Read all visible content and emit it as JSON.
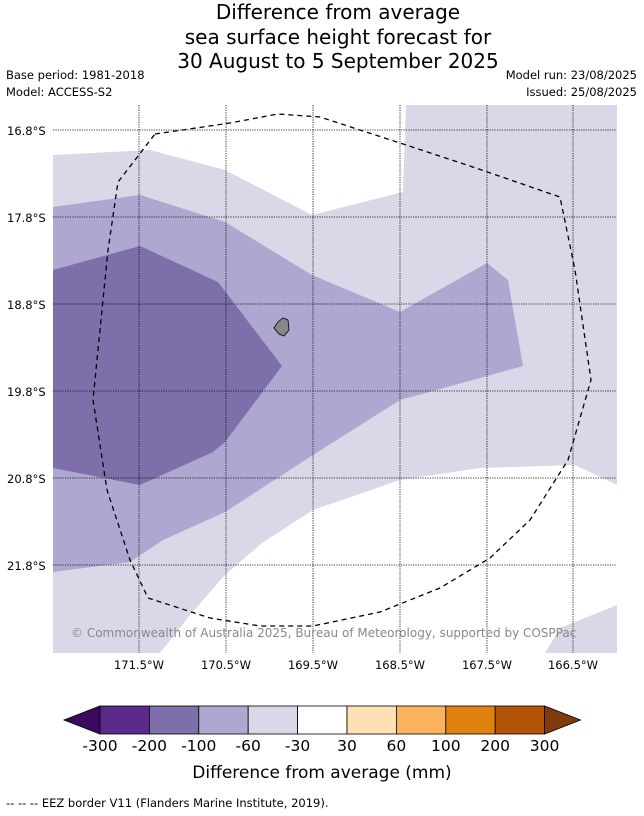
{
  "header": {
    "title_lines": [
      "Difference from average",
      "sea surface height forecast for",
      "30 August to 5 September 2025"
    ],
    "base_period": "Base period: 1981-2018",
    "model": "Model: ACCESS-S2",
    "model_run": "Model run: 23/08/2025",
    "issued": "Issued: 25/08/2025"
  },
  "map": {
    "lat_labels": [
      "16.8°S",
      "17.8°S",
      "18.8°S",
      "19.8°S",
      "20.8°S",
      "21.8°S"
    ],
    "lon_labels": [
      "171.5°W",
      "170.5°W",
      "169.5°W",
      "168.5°W",
      "167.5°W",
      "166.5°W"
    ],
    "copyright": "© Commonwealth of Australia 2025, Bureau of Meteorology, supported by COSPPac",
    "eez_border_style": "dashed black"
  },
  "colorbar": {
    "title": "Difference from average (mm)",
    "tick_labels": [
      "-300",
      "-200",
      "-100",
      "-60",
      "-30",
      "30",
      "60",
      "100",
      "200",
      "300"
    ],
    "colors": {
      "under": "#3a0a5e",
      "bins": [
        "#5a2a8a",
        "#7e6fab",
        "#aea7d0",
        "#d8d8e9",
        "#ffffff",
        "#fde0b3",
        "#fbb35e",
        "#e0800f",
        "#b25406"
      ],
      "over": "#7f3b08"
    }
  },
  "footer": {
    "legend_text": "--  --  -- EEZ border V11 (Flanders Marine Institute, 2019)."
  }
}
